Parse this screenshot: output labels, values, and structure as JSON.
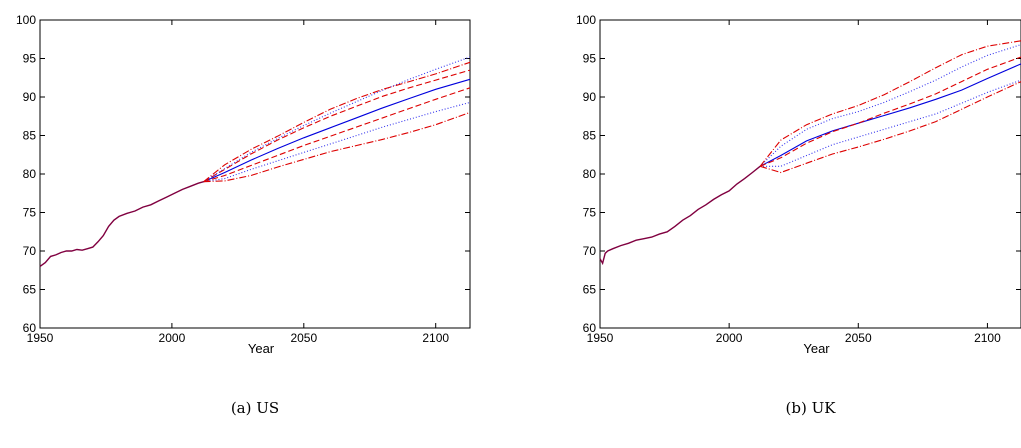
{
  "chart_data": [
    {
      "type": "line",
      "caption": "(a) US",
      "xlabel": "Year",
      "ylabel": "",
      "xlim": [
        1950,
        2113
      ],
      "ylim": [
        60,
        100
      ],
      "xticks": [
        1950,
        2000,
        2050,
        2100
      ],
      "yticks": [
        60,
        65,
        70,
        75,
        80,
        85,
        90,
        95,
        100
      ],
      "grid": false,
      "historical": {
        "color": "#800040",
        "x": [
          1950,
          1952,
          1954,
          1956,
          1958,
          1960,
          1962,
          1964,
          1966,
          1968,
          1970,
          1972,
          1974,
          1976,
          1978,
          1980,
          1983,
          1986,
          1989,
          1992,
          1995,
          1998,
          2001,
          2004,
          2007,
          2010,
          2012
        ],
        "y": [
          68.0,
          68.5,
          69.3,
          69.5,
          69.8,
          70.0,
          70.0,
          70.2,
          70.1,
          70.3,
          70.5,
          71.2,
          72.0,
          73.2,
          74.0,
          74.5,
          74.9,
          75.2,
          75.7,
          76.0,
          76.5,
          77.0,
          77.5,
          78.0,
          78.4,
          78.8,
          79.0
        ]
      },
      "forecast_x": [
        2012,
        2020,
        2030,
        2040,
        2050,
        2060,
        2070,
        2080,
        2090,
        2100,
        2113
      ],
      "series": [
        {
          "color": "#0000dd",
          "dash": "",
          "y": [
            79.0,
            80.2,
            81.8,
            83.3,
            84.7,
            86.0,
            87.3,
            88.6,
            89.8,
            91.0,
            92.3
          ]
        },
        {
          "color": "#dd0000",
          "dash": "6,3",
          "y": [
            79.0,
            79.8,
            81.1,
            82.4,
            83.7,
            84.9,
            86.1,
            87.3,
            88.5,
            89.7,
            91.2
          ]
        },
        {
          "color": "#dd0000",
          "dash": "6,3",
          "y": [
            79.0,
            80.6,
            82.6,
            84.4,
            86.0,
            87.5,
            88.8,
            90.1,
            91.2,
            92.2,
            93.5
          ]
        },
        {
          "color": "#3333ee",
          "dash": "1,2",
          "y": [
            79.0,
            80.7,
            82.8,
            84.6,
            86.3,
            87.9,
            89.4,
            90.9,
            92.3,
            93.6,
            95.2
          ]
        },
        {
          "color": "#3333ee",
          "dash": "1,2",
          "y": [
            79.0,
            79.4,
            80.6,
            81.7,
            82.8,
            83.9,
            85.0,
            86.1,
            87.1,
            88.1,
            89.3
          ]
        },
        {
          "color": "#dd0000",
          "dash": "7,2,1,2",
          "y": [
            79.0,
            79.1,
            79.8,
            80.9,
            81.9,
            82.9,
            83.7,
            84.5,
            85.4,
            86.4,
            88.0
          ]
        },
        {
          "color": "#dd0000",
          "dash": "7,2,1,2",
          "y": [
            79.0,
            81.2,
            83.2,
            84.9,
            86.7,
            88.4,
            89.8,
            91.0,
            92.0,
            93.0,
            94.5
          ]
        }
      ]
    },
    {
      "type": "line",
      "caption": "(b) UK",
      "xlabel": "Year",
      "ylabel": "",
      "xlim": [
        1950,
        2113
      ],
      "ylim": [
        60,
        100
      ],
      "xticks": [
        1950,
        2000,
        2050,
        2100
      ],
      "yticks": [
        60,
        65,
        70,
        75,
        80,
        85,
        90,
        95,
        100
      ],
      "grid": false,
      "historical": {
        "color": "#800040",
        "x": [
          1950,
          1951,
          1952,
          1953,
          1955,
          1958,
          1961,
          1964,
          1967,
          1970,
          1973,
          1976,
          1979,
          1982,
          1985,
          1988,
          1991,
          1994,
          1997,
          2000,
          2003,
          2006,
          2009,
          2012
        ],
        "y": [
          69.0,
          68.4,
          69.7,
          70.0,
          70.3,
          70.7,
          71.0,
          71.4,
          71.6,
          71.8,
          72.2,
          72.5,
          73.2,
          74.0,
          74.6,
          75.4,
          76.0,
          76.7,
          77.3,
          77.8,
          78.7,
          79.4,
          80.2,
          81.0
        ]
      },
      "forecast_x": [
        2012,
        2020,
        2030,
        2040,
        2050,
        2060,
        2070,
        2080,
        2090,
        2100,
        2113
      ],
      "series": [
        {
          "color": "#0000dd",
          "dash": "",
          "y": [
            81.0,
            82.4,
            84.3,
            85.6,
            86.6,
            87.6,
            88.6,
            89.7,
            90.9,
            92.4,
            94.3
          ]
        },
        {
          "color": "#dd0000",
          "dash": "6,3",
          "y": [
            81.0,
            82.1,
            84.0,
            85.5,
            86.6,
            87.9,
            89.1,
            90.4,
            92.0,
            93.6,
            95.2
          ]
        },
        {
          "color": "#3333ee",
          "dash": "1,2",
          "y": [
            81.0,
            83.6,
            85.8,
            87.2,
            88.1,
            89.3,
            90.7,
            92.2,
            93.9,
            95.4,
            96.8
          ]
        },
        {
          "color": "#3333ee",
          "dash": "1,2",
          "y": [
            81.0,
            81.0,
            82.4,
            83.8,
            84.8,
            85.8,
            86.8,
            87.8,
            89.2,
            90.6,
            92.2
          ]
        },
        {
          "color": "#dd0000",
          "dash": "7,2,1,2",
          "y": [
            81.0,
            80.2,
            81.4,
            82.6,
            83.5,
            84.5,
            85.6,
            86.8,
            88.4,
            90.0,
            92.0
          ]
        },
        {
          "color": "#dd0000",
          "dash": "7,2,1,2",
          "y": [
            81.0,
            84.4,
            86.4,
            87.8,
            88.9,
            90.3,
            92.0,
            93.8,
            95.5,
            96.6,
            97.3
          ]
        }
      ]
    }
  ]
}
